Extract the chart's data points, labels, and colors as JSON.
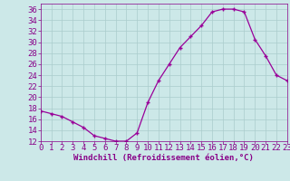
{
  "x": [
    0,
    1,
    2,
    3,
    4,
    5,
    6,
    7,
    8,
    9,
    10,
    11,
    12,
    13,
    14,
    15,
    16,
    17,
    18,
    19,
    20,
    21,
    22,
    23
  ],
  "y": [
    17.5,
    17,
    16.5,
    15.5,
    14.5,
    13,
    12.5,
    12,
    12,
    13.5,
    19,
    23,
    26,
    29,
    31,
    33,
    35.5,
    36,
    36,
    35.5,
    30.5,
    27.5,
    24,
    23
  ],
  "line_color": "#990099",
  "marker": "+",
  "bg_color": "#cce8e8",
  "grid_color": "#aacccc",
  "xlabel": "Windchill (Refroidissement éolien,°C)",
  "xlabel_color": "#880088",
  "tick_color": "#880088",
  "ylim": [
    12,
    37
  ],
  "xlim": [
    0,
    23
  ],
  "yticks": [
    12,
    14,
    16,
    18,
    20,
    22,
    24,
    26,
    28,
    30,
    32,
    34,
    36
  ],
  "xticks": [
    0,
    1,
    2,
    3,
    4,
    5,
    6,
    7,
    8,
    9,
    10,
    11,
    12,
    13,
    14,
    15,
    16,
    17,
    18,
    19,
    20,
    21,
    22,
    23
  ],
  "font_size": 6.5,
  "marker_size": 3.5,
  "linewidth": 0.9
}
